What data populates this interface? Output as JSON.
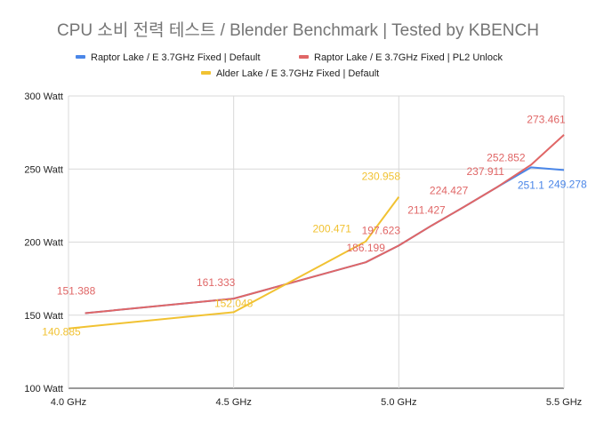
{
  "chart_data": {
    "type": "line",
    "title": "CPU 소비 전력 테스트 / Blender Benchmark | Tested by KBENCH",
    "xlabel": "",
    "ylabel": "",
    "x_ticks": [
      4.0,
      4.5,
      5.0,
      5.5
    ],
    "x_tick_labels": [
      "4.0 GHz",
      "4.5 GHz",
      "5.0 GHz",
      "5.5 GHz"
    ],
    "xlim": [
      4.0,
      5.5
    ],
    "y_ticks": [
      100,
      150,
      200,
      250,
      300
    ],
    "y_tick_labels": [
      "100 Watt",
      "150 Watt",
      "200 Watt",
      "250 Watt",
      "300 Watt"
    ],
    "ylim": [
      100,
      300
    ],
    "grid": true,
    "legend_position": "top",
    "series": [
      {
        "name": "Raptor Lake / E 3.7GHz Fixed |  Default",
        "color": "#4a86e8",
        "x": [
          4.05,
          4.5,
          4.9,
          5.0,
          5.1,
          5.2,
          5.3,
          5.4,
          5.5
        ],
        "values": [
          151.388,
          161.333,
          186.199,
          197.623,
          211.427,
          224.427,
          237.911,
          251.1,
          249.278
        ],
        "labels": [
          "",
          "",
          "",
          "",
          "",
          "",
          "",
          "251.1",
          "249.278"
        ]
      },
      {
        "name": "Raptor Lake / E 3.7GHz Fixed |  PL2 Unlock",
        "color": "#e06666",
        "x": [
          4.05,
          4.5,
          4.9,
          5.0,
          5.1,
          5.2,
          5.3,
          5.4,
          5.5
        ],
        "values": [
          151.388,
          161.333,
          186.199,
          197.623,
          211.427,
          224.427,
          237.911,
          252.852,
          273.461
        ],
        "labels": [
          "151.388",
          "161.333",
          "186.199",
          "197.623",
          "211.427",
          "224.427",
          "237.911",
          "252.852",
          "273.461"
        ]
      },
      {
        "name": "Alder Lake / E 3.7GHz Fixed |  Default",
        "color": "#f1c232",
        "x": [
          4.0,
          4.5,
          4.9,
          5.0
        ],
        "values": [
          140.885,
          152.048,
          200.471,
          230.958
        ],
        "labels": [
          "140.885",
          "152.048",
          "200.471",
          "230.958"
        ]
      }
    ]
  }
}
